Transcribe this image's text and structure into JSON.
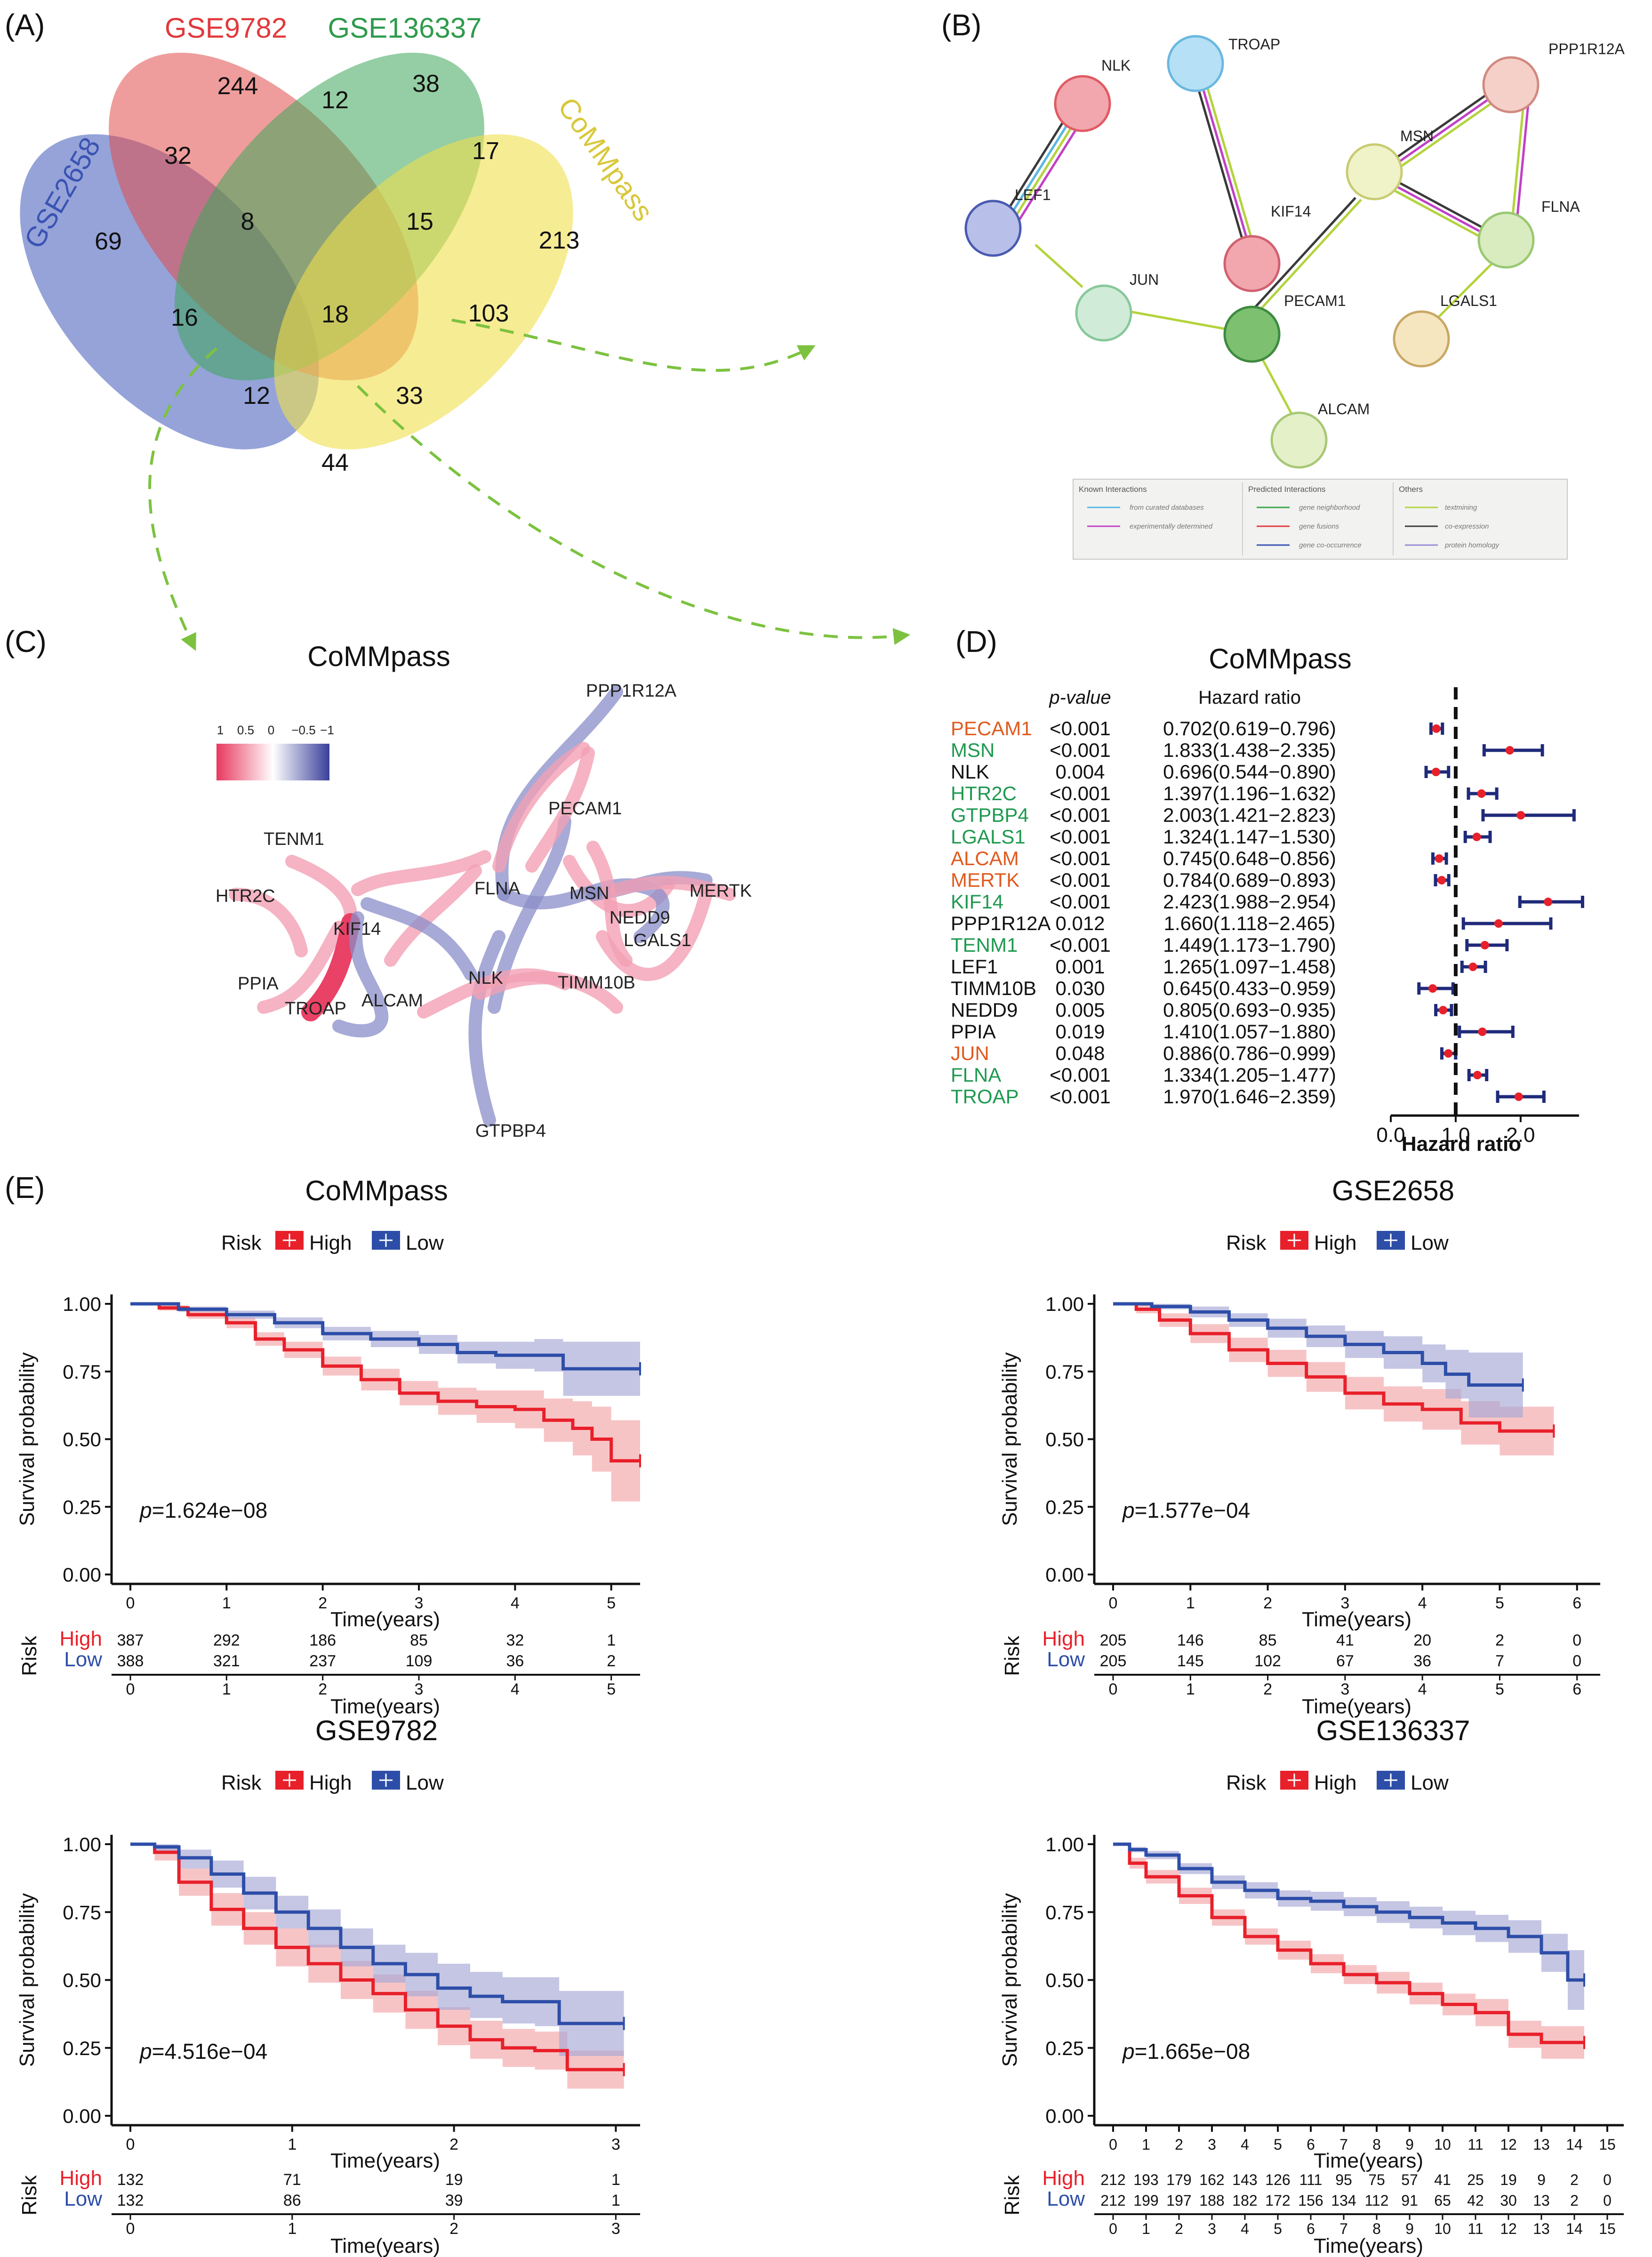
{
  "panels": {
    "a": "(A)",
    "b": "(B)",
    "c": "(C)",
    "d": "(D)",
    "e": "(E)"
  },
  "venn": {
    "sets": [
      {
        "name": "GSE2658",
        "color": "#3a53b3"
      },
      {
        "name": "GSE9782",
        "color": "#e03a3e"
      },
      {
        "name": "GSE136337",
        "color": "#2e9b4c"
      },
      {
        "name": "CoMMpass",
        "color": "#e6d84a"
      }
    ],
    "counts": [
      "244",
      "38",
      "32",
      "12",
      "17",
      "69",
      "8",
      "15",
      "213",
      "16",
      "18",
      "103",
      "12",
      "33",
      "44"
    ]
  },
  "ppi": {
    "nodes": [
      "NLK",
      "TROAP",
      "PPP1R12A",
      "LEF1",
      "MSN",
      "KIF14",
      "FLNA",
      "JUN",
      "PECAM1",
      "LGALS1",
      "ALCAM"
    ],
    "legend": {
      "known_title": "Known Interactions",
      "known_items": [
        "from curated databases",
        "experimentally determined"
      ],
      "predicted_title": "Predicted Interactions",
      "predicted_items": [
        "gene neighborhood",
        "gene fusions",
        "gene co-occurrence"
      ],
      "others_title": "Others",
      "others_items": [
        "textmining",
        "co-expression",
        "protein homology"
      ]
    }
  },
  "corr_network": {
    "title": "CoMMpass",
    "scale_labels": [
      "1",
      "0.5",
      "0",
      "−0.5",
      "−1"
    ],
    "nodes": [
      "PPP1R12A",
      "PECAM1",
      "TENM1",
      "MSN",
      "MERTK",
      "FLNA",
      "NEDD9",
      "HTR2C",
      "KIF14",
      "LGALS1",
      "PPIA",
      "NLK",
      "TIMM10B",
      "TROAP",
      "ALCAM",
      "GTPBP4"
    ]
  },
  "chart_data": [
    {
      "type": "forest",
      "title": "CoMMpass",
      "header_p": "p-value",
      "header_hr": "Hazard ratio",
      "xlabel": "Hazard ratio",
      "xticks": [
        "0.0",
        "1.0",
        "2.0"
      ],
      "xlim": [
        0,
        2.9
      ],
      "reference": 1.0,
      "rows": [
        {
          "gene": "PECAM1",
          "color": "#e05a1e",
          "p": "<0.001",
          "hr_text": "0.702(0.619−0.796)",
          "hr": 0.702,
          "lo": 0.619,
          "hi": 0.796
        },
        {
          "gene": "MSN",
          "color": "#1f9950",
          "p": "<0.001",
          "hr_text": "1.833(1.438−2.335)",
          "hr": 1.833,
          "lo": 1.438,
          "hi": 2.335
        },
        {
          "gene": "NLK",
          "color": "#111111",
          "p": "0.004",
          "hr_text": "0.696(0.544−0.890)",
          "hr": 0.696,
          "lo": 0.544,
          "hi": 0.89
        },
        {
          "gene": "HTR2C",
          "color": "#1f9950",
          "p": "<0.001",
          "hr_text": "1.397(1.196−1.632)",
          "hr": 1.397,
          "lo": 1.196,
          "hi": 1.632
        },
        {
          "gene": "GTPBP4",
          "color": "#1f9950",
          "p": "<0.001",
          "hr_text": "2.003(1.421−2.823)",
          "hr": 2.003,
          "lo": 1.421,
          "hi": 2.823
        },
        {
          "gene": "LGALS1",
          "color": "#1f9950",
          "p": "<0.001",
          "hr_text": "1.324(1.147−1.530)",
          "hr": 1.324,
          "lo": 1.147,
          "hi": 1.53
        },
        {
          "gene": "ALCAM",
          "color": "#e05a1e",
          "p": "<0.001",
          "hr_text": "0.745(0.648−0.856)",
          "hr": 0.745,
          "lo": 0.648,
          "hi": 0.856
        },
        {
          "gene": "MERTK",
          "color": "#e05a1e",
          "p": "<0.001",
          "hr_text": "0.784(0.689−0.893)",
          "hr": 0.784,
          "lo": 0.689,
          "hi": 0.893
        },
        {
          "gene": "KIF14",
          "color": "#1f9950",
          "p": "<0.001",
          "hr_text": "2.423(1.988−2.954)",
          "hr": 2.423,
          "lo": 1.988,
          "hi": 2.954
        },
        {
          "gene": "PPP1R12A",
          "color": "#111111",
          "p": "0.012",
          "hr_text": "1.660(1.118−2.465)",
          "hr": 1.66,
          "lo": 1.118,
          "hi": 2.465
        },
        {
          "gene": "TENM1",
          "color": "#1f9950",
          "p": "<0.001",
          "hr_text": "1.449(1.173−1.790)",
          "hr": 1.449,
          "lo": 1.173,
          "hi": 1.79
        },
        {
          "gene": "LEF1",
          "color": "#111111",
          "p": "0.001",
          "hr_text": "1.265(1.097−1.458)",
          "hr": 1.265,
          "lo": 1.097,
          "hi": 1.458
        },
        {
          "gene": "TIMM10B",
          "color": "#111111",
          "p": "0.030",
          "hr_text": "0.645(0.433−0.959)",
          "hr": 0.645,
          "lo": 0.433,
          "hi": 0.959
        },
        {
          "gene": "NEDD9",
          "color": "#111111",
          "p": "0.005",
          "hr_text": "0.805(0.693−0.935)",
          "hr": 0.805,
          "lo": 0.693,
          "hi": 0.935
        },
        {
          "gene": "PPIA",
          "color": "#111111",
          "p": "0.019",
          "hr_text": "1.410(1.057−1.880)",
          "hr": 1.41,
          "lo": 1.057,
          "hi": 1.88
        },
        {
          "gene": "JUN",
          "color": "#e05a1e",
          "p": "0.048",
          "hr_text": "0.886(0.786−0.999)",
          "hr": 0.886,
          "lo": 0.786,
          "hi": 0.999
        },
        {
          "gene": "FLNA",
          "color": "#1f9950",
          "p": "<0.001",
          "hr_text": "1.334(1.205−1.477)",
          "hr": 1.334,
          "lo": 1.205,
          "hi": 1.477
        },
        {
          "gene": "TROAP",
          "color": "#1f9950",
          "p": "<0.001",
          "hr_text": "1.970(1.646−2.359)",
          "hr": 1.97,
          "lo": 1.646,
          "hi": 2.359
        }
      ]
    },
    {
      "type": "km",
      "title": "CoMMpass",
      "pvalue": "1.624e−08",
      "xlabel": "Time(years)",
      "ylabel": "Survival probability",
      "legend_title": "Risk",
      "yticks": [
        "0.00",
        "0.25",
        "0.50",
        "0.75",
        "1.00"
      ],
      "xticks": [
        0,
        1,
        2,
        3,
        4,
        5
      ],
      "xmax": 5.3,
      "series": [
        {
          "name": "High",
          "color": "#e8202a",
          "fill": "#f2a4a8",
          "t": [
            0,
            0.3,
            0.6,
            1.0,
            1.3,
            1.6,
            2.0,
            2.4,
            2.8,
            3.2,
            3.6,
            4.0,
            4.3,
            4.6,
            4.8,
            5.0,
            5.3
          ],
          "s": [
            1.0,
            0.985,
            0.96,
            0.93,
            0.87,
            0.83,
            0.77,
            0.72,
            0.67,
            0.64,
            0.62,
            0.61,
            0.57,
            0.54,
            0.5,
            0.42,
            0.42
          ],
          "lo": [
            1.0,
            0.975,
            0.945,
            0.91,
            0.845,
            0.8,
            0.735,
            0.68,
            0.625,
            0.59,
            0.56,
            0.54,
            0.49,
            0.44,
            0.38,
            0.27,
            0.27
          ],
          "hi": [
            1.0,
            0.995,
            0.975,
            0.95,
            0.895,
            0.86,
            0.805,
            0.76,
            0.715,
            0.69,
            0.68,
            0.68,
            0.65,
            0.64,
            0.62,
            0.57,
            0.57
          ]
        },
        {
          "name": "Low",
          "color": "#2d4ea8",
          "fill": "#a6a8d6",
          "t": [
            0,
            0.5,
            1.0,
            1.5,
            2.0,
            2.5,
            3.0,
            3.4,
            3.8,
            4.2,
            4.5,
            5.0,
            5.3
          ],
          "s": [
            1.0,
            0.98,
            0.96,
            0.93,
            0.89,
            0.87,
            0.85,
            0.82,
            0.81,
            0.81,
            0.76,
            0.76,
            0.76
          ],
          "lo": [
            1.0,
            0.97,
            0.945,
            0.91,
            0.865,
            0.84,
            0.815,
            0.78,
            0.76,
            0.75,
            0.66,
            0.66,
            0.66
          ],
          "hi": [
            1.0,
            0.99,
            0.975,
            0.95,
            0.915,
            0.9,
            0.885,
            0.86,
            0.86,
            0.87,
            0.86,
            0.86,
            0.86
          ]
        }
      ],
      "risk_table": {
        "high": [
          "387",
          "292",
          "186",
          "85",
          "32",
          "1"
        ],
        "low": [
          "388",
          "321",
          "237",
          "109",
          "36",
          "2"
        ]
      }
    },
    {
      "type": "km",
      "title": "GSE2658",
      "pvalue": "1.577e−04",
      "xlabel": "Time(years)",
      "ylabel": "Survival probability",
      "legend_title": "Risk",
      "yticks": [
        "0.00",
        "0.25",
        "0.50",
        "0.75",
        "1.00"
      ],
      "xticks": [
        0,
        1,
        2,
        3,
        4,
        5,
        6
      ],
      "xmax": 6.3,
      "series": [
        {
          "name": "High",
          "color": "#e8202a",
          "fill": "#f2a4a8",
          "t": [
            0,
            0.3,
            0.6,
            1.0,
            1.5,
            2.0,
            2.5,
            3.0,
            3.5,
            4.0,
            4.5,
            5.0,
            5.5,
            5.7
          ],
          "s": [
            1.0,
            0.98,
            0.94,
            0.89,
            0.83,
            0.78,
            0.73,
            0.67,
            0.63,
            0.61,
            0.56,
            0.53,
            0.53,
            0.53
          ],
          "lo": [
            1.0,
            0.965,
            0.915,
            0.855,
            0.785,
            0.73,
            0.675,
            0.61,
            0.565,
            0.535,
            0.48,
            0.44,
            0.44,
            0.44
          ],
          "hi": [
            1.0,
            0.995,
            0.965,
            0.925,
            0.875,
            0.83,
            0.785,
            0.73,
            0.695,
            0.685,
            0.64,
            0.62,
            0.62,
            0.62
          ]
        },
        {
          "name": "Low",
          "color": "#2d4ea8",
          "fill": "#a6a8d6",
          "t": [
            0,
            0.5,
            1.0,
            1.5,
            2.0,
            2.5,
            3.0,
            3.5,
            4.0,
            4.3,
            4.6,
            5.0,
            5.3
          ],
          "s": [
            1.0,
            0.99,
            0.97,
            0.94,
            0.91,
            0.88,
            0.85,
            0.82,
            0.78,
            0.74,
            0.7,
            0.7,
            0.7
          ],
          "lo": [
            1.0,
            0.98,
            0.95,
            0.915,
            0.875,
            0.84,
            0.8,
            0.76,
            0.71,
            0.65,
            0.58,
            0.58,
            0.58
          ],
          "hi": [
            1.0,
            1.0,
            0.99,
            0.965,
            0.945,
            0.92,
            0.9,
            0.88,
            0.85,
            0.83,
            0.82,
            0.82,
            0.82
          ]
        }
      ],
      "risk_table": {
        "high": [
          "205",
          "146",
          "85",
          "41",
          "20",
          "2",
          "0"
        ],
        "low": [
          "205",
          "145",
          "102",
          "67",
          "36",
          "7",
          "0"
        ]
      }
    },
    {
      "type": "km",
      "title": "GSE9782",
      "pvalue": "4.516e−04",
      "xlabel": "Time(years)",
      "ylabel": "Survival probability",
      "legend_title": "Risk",
      "yticks": [
        "0.00",
        "0.25",
        "0.50",
        "0.75",
        "1.00"
      ],
      "xticks": [
        0,
        1,
        2,
        3
      ],
      "xmax": 3.15,
      "series": [
        {
          "name": "High",
          "color": "#e8202a",
          "fill": "#f2a4a8",
          "t": [
            0,
            0.15,
            0.3,
            0.5,
            0.7,
            0.9,
            1.1,
            1.3,
            1.5,
            1.7,
            1.9,
            2.1,
            2.3,
            2.5,
            2.6,
            2.7,
            3.05
          ],
          "s": [
            1.0,
            0.97,
            0.86,
            0.76,
            0.69,
            0.62,
            0.56,
            0.5,
            0.45,
            0.39,
            0.33,
            0.28,
            0.25,
            0.24,
            0.24,
            0.17,
            0.17
          ],
          "lo": [
            1.0,
            0.94,
            0.81,
            0.7,
            0.63,
            0.55,
            0.49,
            0.43,
            0.38,
            0.32,
            0.26,
            0.21,
            0.18,
            0.17,
            0.17,
            0.1,
            0.1
          ],
          "hi": [
            1.0,
            0.99,
            0.91,
            0.82,
            0.75,
            0.69,
            0.63,
            0.57,
            0.52,
            0.46,
            0.4,
            0.35,
            0.32,
            0.31,
            0.31,
            0.24,
            0.24
          ]
        },
        {
          "name": "Low",
          "color": "#2d4ea8",
          "fill": "#a6a8d6",
          "t": [
            0,
            0.15,
            0.3,
            0.5,
            0.7,
            0.9,
            1.1,
            1.3,
            1.5,
            1.7,
            1.9,
            2.1,
            2.3,
            2.5,
            2.6,
            2.65,
            3.05
          ],
          "s": [
            1.0,
            0.99,
            0.95,
            0.89,
            0.82,
            0.75,
            0.69,
            0.62,
            0.56,
            0.52,
            0.47,
            0.44,
            0.42,
            0.42,
            0.42,
            0.34,
            0.34
          ],
          "lo": [
            1.0,
            0.97,
            0.91,
            0.84,
            0.76,
            0.69,
            0.62,
            0.55,
            0.49,
            0.44,
            0.39,
            0.36,
            0.34,
            0.33,
            0.33,
            0.22,
            0.22
          ],
          "hi": [
            1.0,
            1.0,
            0.98,
            0.94,
            0.88,
            0.81,
            0.76,
            0.69,
            0.63,
            0.6,
            0.56,
            0.53,
            0.51,
            0.51,
            0.51,
            0.46,
            0.46
          ]
        }
      ],
      "risk_table": {
        "high": [
          "132",
          "71",
          "19",
          "1"
        ],
        "low": [
          "132",
          "86",
          "39",
          "1"
        ]
      }
    },
    {
      "type": "km",
      "title": "GSE136337",
      "pvalue": "1.665e−08",
      "xlabel": "Time(years)",
      "ylabel": "Survival probability",
      "legend_title": "Risk",
      "yticks": [
        "0.00",
        "0.25",
        "0.50",
        "0.75",
        "1.00"
      ],
      "xticks": [
        0,
        1,
        2,
        3,
        4,
        5,
        6,
        7,
        8,
        9,
        10,
        11,
        12,
        13,
        14,
        15
      ],
      "xmax": 15.5,
      "series": [
        {
          "name": "High",
          "color": "#e8202a",
          "fill": "#f2a4a8",
          "t": [
            0,
            0.5,
            1,
            2,
            3,
            4,
            5,
            6,
            7,
            8,
            9,
            10,
            11,
            12,
            13,
            13.5,
            14.3
          ],
          "s": [
            1.0,
            0.93,
            0.88,
            0.81,
            0.73,
            0.66,
            0.61,
            0.56,
            0.52,
            0.49,
            0.45,
            0.41,
            0.38,
            0.3,
            0.27,
            0.27,
            0.27
          ],
          "lo": [
            1.0,
            0.91,
            0.855,
            0.78,
            0.7,
            0.63,
            0.575,
            0.525,
            0.485,
            0.45,
            0.41,
            0.37,
            0.33,
            0.25,
            0.21,
            0.21,
            0.21
          ],
          "hi": [
            1.0,
            0.95,
            0.905,
            0.84,
            0.76,
            0.69,
            0.645,
            0.595,
            0.555,
            0.53,
            0.49,
            0.45,
            0.43,
            0.35,
            0.33,
            0.33,
            0.33
          ]
        },
        {
          "name": "Low",
          "color": "#2d4ea8",
          "fill": "#a6a8d6",
          "t": [
            0,
            0.5,
            1,
            2,
            3,
            4,
            5,
            6,
            7,
            8,
            9,
            10,
            11,
            12,
            13,
            13.8,
            14.3
          ],
          "s": [
            1.0,
            0.98,
            0.96,
            0.91,
            0.86,
            0.83,
            0.8,
            0.79,
            0.77,
            0.75,
            0.73,
            0.71,
            0.69,
            0.66,
            0.6,
            0.5,
            0.5
          ],
          "lo": [
            1.0,
            0.97,
            0.945,
            0.89,
            0.835,
            0.8,
            0.77,
            0.755,
            0.735,
            0.71,
            0.69,
            0.665,
            0.64,
            0.6,
            0.53,
            0.39,
            0.39
          ],
          "hi": [
            1.0,
            0.99,
            0.975,
            0.93,
            0.885,
            0.86,
            0.83,
            0.825,
            0.805,
            0.79,
            0.77,
            0.755,
            0.74,
            0.72,
            0.67,
            0.61,
            0.61
          ]
        }
      ],
      "risk_table": {
        "high": [
          "212",
          "193",
          "179",
          "162",
          "143",
          "126",
          "111",
          "95",
          "75",
          "57",
          "41",
          "25",
          "19",
          "9",
          "2",
          "0"
        ],
        "low": [
          "212",
          "199",
          "197",
          "188",
          "182",
          "172",
          "156",
          "134",
          "112",
          "91",
          "65",
          "42",
          "30",
          "13",
          "2",
          "0"
        ]
      }
    }
  ]
}
